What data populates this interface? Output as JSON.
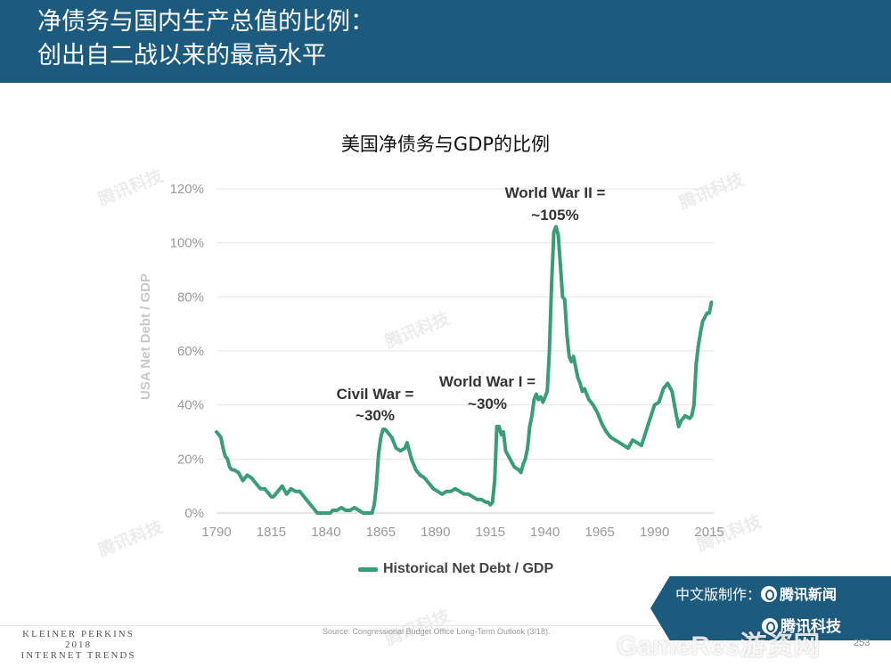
{
  "header": {
    "title_line1": "净债务与国内生产总值的比例：",
    "title_line2": "创出自二战以来的最高水平"
  },
  "chart_data": {
    "type": "line",
    "title": "美国净债务与GDP的比例",
    "xlabel": "",
    "ylabel": "USA Net Debt / GDP",
    "xlim": [
      1790,
      2017
    ],
    "ylim": [
      0,
      120
    ],
    "grid": true,
    "legend_position": "bottom-center",
    "x_ticks": [
      "1790",
      "1815",
      "1840",
      "1865",
      "1890",
      "1915",
      "1940",
      "1965",
      "1990",
      "2015"
    ],
    "y_ticks": [
      "0%",
      "20%",
      "40%",
      "60%",
      "80%",
      "100%",
      "120%"
    ],
    "series": [
      {
        "name": "Historical Net Debt / GDP",
        "color": "#3a9d78",
        "x": [
          1790,
          1791,
          1792,
          1793,
          1794,
          1795,
          1796,
          1797,
          1798,
          1800,
          1802,
          1804,
          1806,
          1808,
          1810,
          1812,
          1814,
          1815,
          1816,
          1818,
          1820,
          1822,
          1824,
          1826,
          1828,
          1830,
          1832,
          1834,
          1836,
          1838,
          1840,
          1842,
          1843,
          1845,
          1847,
          1849,
          1851,
          1853,
          1855,
          1857,
          1858,
          1860,
          1861,
          1862,
          1863,
          1864,
          1865,
          1866,
          1867,
          1868,
          1870,
          1872,
          1874,
          1876,
          1877,
          1879,
          1881,
          1883,
          1885,
          1887,
          1889,
          1891,
          1893,
          1895,
          1897,
          1899,
          1901,
          1903,
          1905,
          1907,
          1909,
          1911,
          1913,
          1914,
          1915,
          1916,
          1917,
          1918,
          1919,
          1920,
          1921,
          1922,
          1924,
          1926,
          1928,
          1929,
          1930,
          1931,
          1932,
          1933,
          1934,
          1935,
          1936,
          1937,
          1938,
          1939,
          1940,
          1941,
          1942,
          1943,
          1944,
          1945,
          1946,
          1947,
          1948,
          1949,
          1950,
          1951,
          1952,
          1953,
          1954,
          1955,
          1956,
          1957,
          1958,
          1960,
          1962,
          1964,
          1966,
          1968,
          1970,
          1972,
          1974,
          1976,
          1978,
          1980,
          1982,
          1984,
          1986,
          1988,
          1990,
          1992,
          1994,
          1996,
          1998,
          2000,
          2001,
          2002,
          2004,
          2006,
          2007,
          2008,
          2009,
          2010,
          2011,
          2012,
          2014,
          2015,
          2016
        ],
        "values": [
          30,
          29,
          28,
          24,
          21,
          20,
          17,
          16,
          16,
          15,
          12,
          14,
          13,
          11,
          9,
          9,
          7,
          6,
          6,
          8,
          10,
          7,
          9,
          8,
          8,
          6,
          4,
          2,
          0,
          0,
          0,
          0,
          1,
          1,
          2,
          1,
          1,
          2,
          1,
          0,
          0,
          0,
          0,
          3,
          10,
          22,
          28,
          31,
          31,
          30,
          28,
          24,
          23,
          24,
          26,
          20,
          16,
          14,
          13,
          11,
          9,
          8,
          7,
          8,
          8,
          9,
          8,
          7,
          7,
          6,
          5,
          5,
          4,
          4,
          3,
          4,
          12,
          32,
          32,
          29,
          30,
          23,
          20,
          17,
          16,
          15,
          18,
          20,
          24,
          32,
          36,
          42,
          44,
          42,
          43,
          41,
          43,
          45,
          60,
          85,
          104,
          106,
          103,
          92,
          80,
          79,
          66,
          58,
          56,
          58,
          54,
          50,
          48,
          45,
          46,
          42,
          40,
          37,
          33,
          30,
          28,
          27,
          26,
          25,
          24,
          27,
          26,
          25,
          30,
          35,
          40,
          41,
          46,
          48,
          45,
          36,
          32,
          34,
          36,
          35,
          36,
          40,
          55,
          62,
          67,
          71,
          74,
          74,
          78
        ]
      }
    ],
    "annotations": [
      {
        "line1": "Civil War =",
        "line2": "~30%"
      },
      {
        "line1": "World War I =",
        "line2": "~30%"
      },
      {
        "line1": "World War II =",
        "line2": "~105%"
      }
    ]
  },
  "footer": {
    "source": "Source: Congressional Budget Office Long-Term Outlook (3/18).",
    "kp_line1": "KLEINER PERKINS",
    "kp_line2": "2018",
    "kp_line3": "INTERNET TRENDS",
    "page_number": "253"
  },
  "credit": {
    "row1_prefix": "中文版制作：",
    "row1_brand": "腾讯新闻",
    "row2_brand": "腾讯科技"
  },
  "watermarks": {
    "text": "腾讯科技",
    "gameres": "GameRes游资网"
  }
}
